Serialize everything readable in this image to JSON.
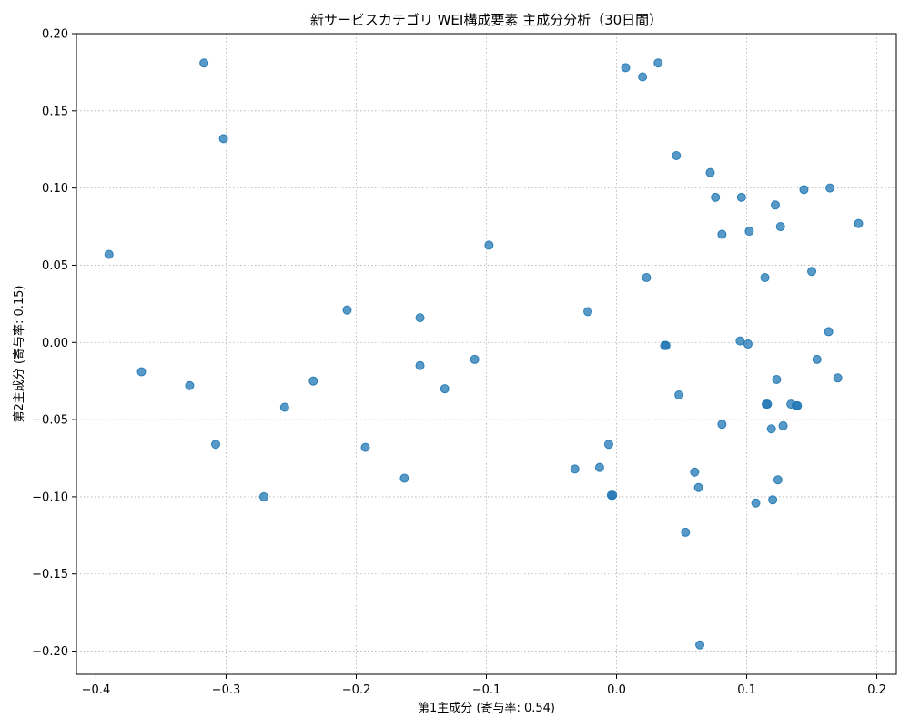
{
  "chart_data": {
    "type": "scatter",
    "title": "新サービスカテゴリ WEI構成要素 主成分分析（30日間）",
    "xlabel": "第1主成分 (寄与率: 0.54)",
    "ylabel": "第2主成分 (寄与率: 0.15)",
    "xlim": [
      -0.415,
      0.215
    ],
    "ylim": [
      -0.215,
      0.2
    ],
    "xticks": [
      -0.4,
      -0.3,
      -0.2,
      -0.1,
      0.0,
      0.1,
      0.2
    ],
    "xtick_labels": [
      "−0.4",
      "−0.3",
      "−0.2",
      "−0.1",
      "0.0",
      "0.1",
      "0.2"
    ],
    "yticks": [
      -0.2,
      -0.15,
      -0.1,
      -0.05,
      0.0,
      0.05,
      0.1,
      0.15,
      0.2
    ],
    "ytick_labels": [
      "−0.20",
      "−0.15",
      "−0.10",
      "−0.05",
      "0.00",
      "0.05",
      "0.10",
      "0.15",
      "0.20"
    ],
    "grid": true,
    "marker_color": "#1f77b4",
    "points": [
      {
        "x": -0.317,
        "y": 0.181
      },
      {
        "x": -0.302,
        "y": 0.132
      },
      {
        "x": -0.39,
        "y": 0.057
      },
      {
        "x": -0.365,
        "y": -0.019
      },
      {
        "x": -0.328,
        "y": -0.028
      },
      {
        "x": -0.308,
        "y": -0.066
      },
      {
        "x": -0.271,
        "y": -0.1
      },
      {
        "x": -0.255,
        "y": -0.042
      },
      {
        "x": -0.233,
        "y": -0.025
      },
      {
        "x": -0.207,
        "y": 0.021
      },
      {
        "x": -0.193,
        "y": -0.068
      },
      {
        "x": -0.163,
        "y": -0.088
      },
      {
        "x": -0.151,
        "y": 0.016
      },
      {
        "x": -0.151,
        "y": -0.015
      },
      {
        "x": -0.132,
        "y": -0.03
      },
      {
        "x": -0.109,
        "y": -0.011
      },
      {
        "x": -0.098,
        "y": 0.063
      },
      {
        "x": -0.032,
        "y": -0.082
      },
      {
        "x": -0.022,
        "y": 0.02
      },
      {
        "x": -0.013,
        "y": -0.081
      },
      {
        "x": -0.006,
        "y": -0.066
      },
      {
        "x": -0.004,
        "y": -0.099
      },
      {
        "x": -0.003,
        "y": -0.099
      },
      {
        "x": 0.007,
        "y": 0.178
      },
      {
        "x": 0.02,
        "y": 0.172
      },
      {
        "x": 0.023,
        "y": 0.042
      },
      {
        "x": 0.032,
        "y": 0.181
      },
      {
        "x": 0.037,
        "y": -0.002
      },
      {
        "x": 0.038,
        "y": -0.002
      },
      {
        "x": 0.046,
        "y": 0.121
      },
      {
        "x": 0.048,
        "y": -0.034
      },
      {
        "x": 0.053,
        "y": -0.123
      },
      {
        "x": 0.06,
        "y": -0.084
      },
      {
        "x": 0.063,
        "y": -0.094
      },
      {
        "x": 0.064,
        "y": -0.196
      },
      {
        "x": 0.072,
        "y": 0.11
      },
      {
        "x": 0.076,
        "y": 0.094
      },
      {
        "x": 0.081,
        "y": 0.07
      },
      {
        "x": 0.081,
        "y": -0.053
      },
      {
        "x": 0.095,
        "y": 0.001
      },
      {
        "x": 0.096,
        "y": 0.094
      },
      {
        "x": 0.101,
        "y": -0.001
      },
      {
        "x": 0.102,
        "y": 0.072
      },
      {
        "x": 0.107,
        "y": -0.104
      },
      {
        "x": 0.114,
        "y": 0.042
      },
      {
        "x": 0.115,
        "y": -0.04
      },
      {
        "x": 0.116,
        "y": -0.04
      },
      {
        "x": 0.119,
        "y": -0.056
      },
      {
        "x": 0.12,
        "y": -0.102
      },
      {
        "x": 0.122,
        "y": 0.089
      },
      {
        "x": 0.123,
        "y": -0.024
      },
      {
        "x": 0.124,
        "y": -0.089
      },
      {
        "x": 0.126,
        "y": 0.075
      },
      {
        "x": 0.128,
        "y": -0.054
      },
      {
        "x": 0.134,
        "y": -0.04
      },
      {
        "x": 0.138,
        "y": -0.041
      },
      {
        "x": 0.139,
        "y": -0.041
      },
      {
        "x": 0.144,
        "y": 0.099
      },
      {
        "x": 0.15,
        "y": 0.046
      },
      {
        "x": 0.154,
        "y": -0.011
      },
      {
        "x": 0.163,
        "y": 0.007
      },
      {
        "x": 0.164,
        "y": 0.1
      },
      {
        "x": 0.17,
        "y": -0.023
      },
      {
        "x": 0.186,
        "y": 0.077
      }
    ]
  }
}
